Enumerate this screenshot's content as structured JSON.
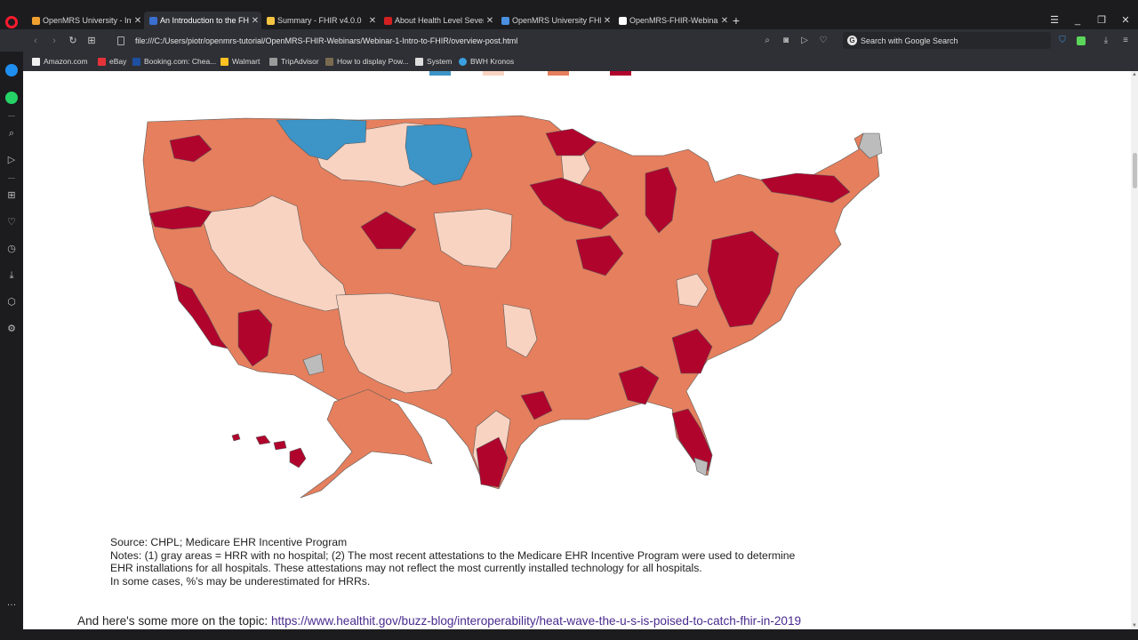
{
  "tabs": [
    {
      "label": "OpenMRS University - Intro",
      "color": "#f0a030",
      "active": false
    },
    {
      "label": "An Introduction to the FHIR",
      "color": "#3a6fd0",
      "active": true
    },
    {
      "label": "Summary - FHIR v4.0.0",
      "color": "#f5c542",
      "active": false
    },
    {
      "label": "About Health Level Seven",
      "color": "#d22020",
      "active": false
    },
    {
      "label": "OpenMRS University FHIR",
      "color": "#4a8fe0",
      "active": false
    },
    {
      "label": "OpenMRS-FHIR-Webinars/",
      "color": "#ffffff",
      "active": false
    }
  ],
  "address": {
    "url": "file:///C:/Users/piotr/openmrs-tutorial/OpenMRS-FHIR-Webinars/Webinar-1-Intro-to-FHIR/overview-post.html",
    "search_placeholder": "Search with Google Search",
    "search_g": "G"
  },
  "bookmarks": [
    {
      "label": "Amazon.com",
      "color": "#f0f0f0"
    },
    {
      "label": "eBay",
      "color": "#e53238"
    },
    {
      "label": "Booking.com: Chea...",
      "color": "#1e4fa0"
    },
    {
      "label": "Walmart",
      "color": "#ffc220"
    },
    {
      "label": "TripAdvisor",
      "color": "#9a9a9a"
    },
    {
      "label": "How to display Pow...",
      "color": "#7a6a50"
    },
    {
      "label": "System",
      "color": "#dddddd"
    },
    {
      "label": "BWH Kronos",
      "color": "#3aa0e0"
    }
  ],
  "map": {
    "colors": {
      "lowest": "#3d94c6",
      "low": "#f8d3c2",
      "mid": "#e57f5d",
      "high": "#b0042d",
      "no_hospital": "#bcbcbc",
      "border": "#5a5a5a"
    }
  },
  "notes": {
    "source": "Source: CHPL; Medicare EHR Incentive Program",
    "line1": "Notes: (1) gray areas = HRR with no hospital; (2) The most recent attestations to the Medicare EHR Incentive Program were used to determine",
    "line2": "EHR installations for all hospitals. These attestations may not reflect the most currently installed technology for all hospitals.",
    "line3": "In some cases, %'s may be underestimated for HRRs."
  },
  "more": {
    "prefix": "And here's some more on the topic: ",
    "link": "https://www.healthit.gov/buzz-blog/interoperability/heat-wave-the-u-s-is-poised-to-catch-fhir-in-2019"
  }
}
